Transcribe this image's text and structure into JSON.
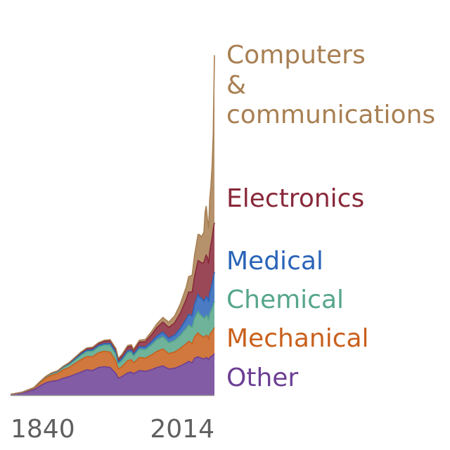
{
  "chart_data": {
    "type": "area",
    "title": "",
    "xlabel": "",
    "ylabel": "",
    "stacked": true,
    "x_tick_labels": [
      "1840",
      "2014"
    ],
    "xlim": [
      1840,
      2014
    ],
    "ylim": [
      0,
      250000
    ],
    "legend": "direct labels at right",
    "years": [
      1840,
      1850,
      1860,
      1865,
      1870,
      1875,
      1880,
      1885,
      1890,
      1895,
      1900,
      1905,
      1910,
      1915,
      1920,
      1925,
      1930,
      1932,
      1935,
      1940,
      1943,
      1945,
      1950,
      1955,
      1960,
      1965,
      1970,
      1975,
      1980,
      1985,
      1990,
      1992,
      1995,
      1997,
      2000,
      2001,
      2003,
      2005,
      2006,
      2007,
      2008,
      2009,
      2010,
      2011,
      2012,
      2013,
      2014
    ],
    "series": [
      {
        "name": "Other",
        "values": [
          500,
          1500,
          3500,
          6000,
          8000,
          9000,
          9500,
          11000,
          12000,
          13500,
          15000,
          16500,
          16000,
          18000,
          18500,
          18000,
          14000,
          11000,
          12000,
          14500,
          15000,
          14000,
          16000,
          15500,
          16500,
          18000,
          19000,
          17000,
          17500,
          19000,
          21000,
          22000,
          21000,
          24000,
          25000,
          24500,
          24000,
          23500,
          24000,
          24500,
          24000,
          23000,
          24500,
          25000,
          25500,
          26000,
          27000
        ]
      },
      {
        "name": "Mechanical",
        "values": [
          0,
          300,
          1000,
          2000,
          3000,
          4000,
          4500,
          5500,
          6000,
          7000,
          8000,
          8500,
          9000,
          9500,
          10000,
          10000,
          8000,
          6000,
          6500,
          8000,
          8000,
          7000,
          8500,
          8500,
          9500,
          10500,
          11000,
          10000,
          10500,
          11500,
          12500,
          13000,
          12500,
          14000,
          15500,
          15000,
          14500,
          14000,
          14000,
          14500,
          14500,
          13500,
          15000,
          15500,
          16000,
          16500,
          17000
        ]
      },
      {
        "name": "Chemical",
        "values": [
          0,
          100,
          300,
          500,
          800,
          1000,
          1200,
          1500,
          2000,
          2500,
          3000,
          3300,
          3500,
          3800,
          4000,
          4500,
          4500,
          3500,
          4000,
          5000,
          5000,
          4500,
          5500,
          5500,
          6500,
          7500,
          8000,
          7000,
          7500,
          8500,
          10000,
          10500,
          10500,
          12000,
          14000,
          13500,
          13000,
          12500,
          12500,
          13000,
          12500,
          12000,
          13500,
          14000,
          15000,
          16000,
          17000
        ]
      },
      {
        "name": "Medical",
        "values": [
          0,
          0,
          100,
          200,
          200,
          300,
          300,
          400,
          500,
          600,
          700,
          800,
          900,
          900,
          1000,
          1100,
          1100,
          1000,
          1100,
          1300,
          1300,
          1200,
          1500,
          1700,
          2000,
          2500,
          3000,
          3000,
          3500,
          4500,
          6000,
          7000,
          7500,
          9000,
          11000,
          11000,
          11500,
          11000,
          11500,
          12000,
          12500,
          12000,
          13500,
          14500,
          16000,
          17500,
          19000
        ]
      },
      {
        "name": "Electronics",
        "values": [
          0,
          0,
          0,
          50,
          100,
          150,
          200,
          300,
          500,
          700,
          900,
          1100,
          1300,
          1400,
          1600,
          1800,
          1900,
          1800,
          2000,
          2500,
          2500,
          2300,
          3000,
          3500,
          4500,
          5500,
          6500,
          7000,
          8000,
          10000,
          13000,
          14500,
          15500,
          18000,
          22000,
          23000,
          23000,
          25000,
          27000,
          27000,
          26000,
          25000,
          27000,
          29000,
          30000,
          32000,
          32000
        ]
      },
      {
        "name": "Computers & communications",
        "values": [
          0,
          0,
          0,
          0,
          0,
          50,
          100,
          150,
          200,
          300,
          400,
          450,
          500,
          550,
          600,
          650,
          700,
          700,
          800,
          1000,
          1000,
          900,
          1200,
          1500,
          2000,
          2500,
          3000,
          3500,
          4500,
          6000,
          8000,
          10000,
          11000,
          14000,
          17000,
          17500,
          17000,
          20000,
          30000,
          32000,
          25000,
          23000,
          34000,
          38000,
          47000,
          62000,
          109000
        ]
      }
    ],
    "colors": {
      "Other": "#6c3f94",
      "Mechanical": "#c9601c",
      "Chemical": "#56a68a",
      "Medical": "#2a64b8",
      "Electronics": "#882839",
      "Computers & communications": "#a87f52"
    },
    "fill_opacity": 0.85
  },
  "labels": {
    "computers_line1": "Computers",
    "computers_line2": "&",
    "computers_line3": "communications",
    "electronics": "Electronics",
    "medical": "Medical",
    "chemical": "Chemical",
    "mechanical": "Mechanical",
    "other": "Other"
  },
  "ticks": {
    "left": "1840",
    "right": "2014"
  }
}
